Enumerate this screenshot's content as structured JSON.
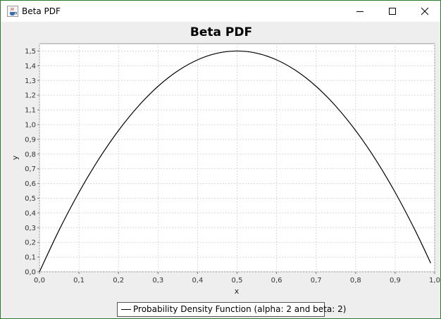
{
  "window": {
    "title": "Beta PDF",
    "icon": "java-cup-icon"
  },
  "chart_data": {
    "type": "line",
    "title": "Beta PDF",
    "xlabel": "x",
    "ylabel": "y",
    "xlim": [
      0.0,
      1.0
    ],
    "ylim": [
      0.0,
      1.55
    ],
    "xticks": [
      "0,0",
      "0,1",
      "0,2",
      "0,3",
      "0,4",
      "0,5",
      "0,6",
      "0,7",
      "0,8",
      "0,9",
      "1,0"
    ],
    "yticks": [
      "0,0",
      "0,1",
      "0,2",
      "0,3",
      "0,4",
      "0,5",
      "0,6",
      "0,7",
      "0,8",
      "0,9",
      "1,0",
      "1,1",
      "1,2",
      "1,3",
      "1,4",
      "1,5"
    ],
    "grid": true,
    "legend_position": "bottom",
    "series": [
      {
        "name": "Probability Density Function (alpha: 2 and beta: 2)",
        "color": "#000000",
        "x": [
          0.0,
          0.05,
          0.1,
          0.15,
          0.2,
          0.25,
          0.3,
          0.35,
          0.4,
          0.45,
          0.5,
          0.55,
          0.6,
          0.65,
          0.7,
          0.75,
          0.8,
          0.85,
          0.9,
          0.95,
          0.99
        ],
        "y": [
          0.0,
          0.285,
          0.54,
          0.765,
          0.96,
          1.125,
          1.26,
          1.365,
          1.44,
          1.485,
          1.5,
          1.485,
          1.44,
          1.365,
          1.26,
          1.125,
          0.96,
          0.765,
          0.54,
          0.285,
          0.0594
        ]
      }
    ]
  }
}
